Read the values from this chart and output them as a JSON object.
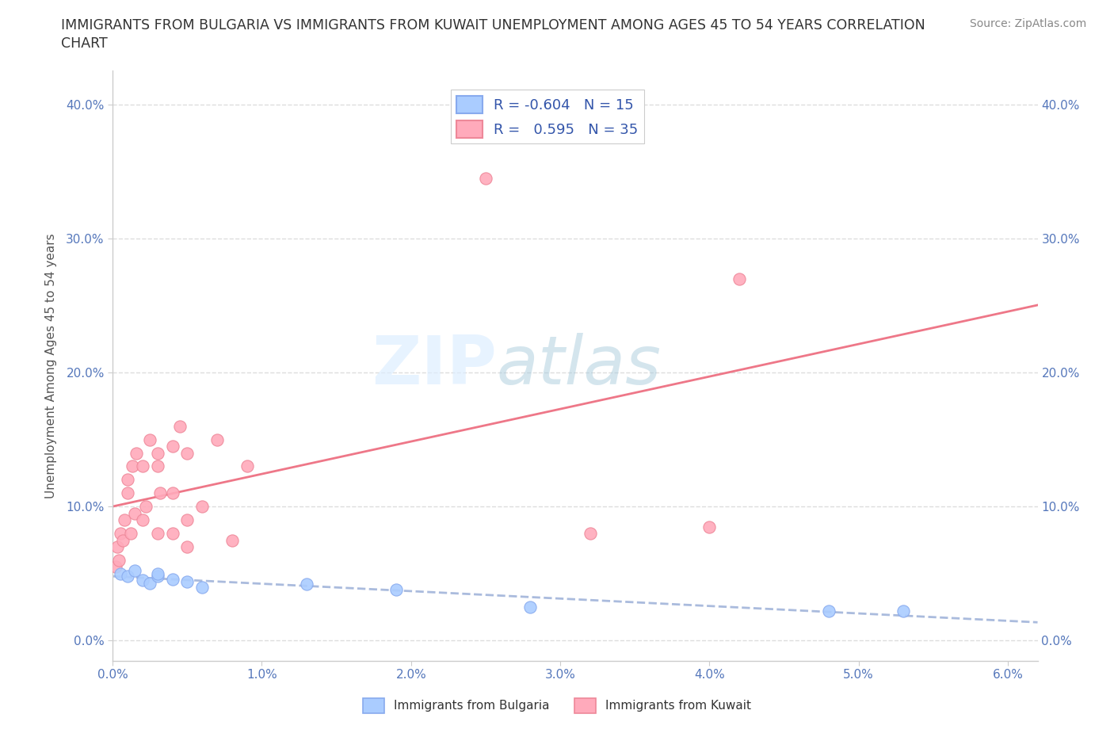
{
  "title_line1": "IMMIGRANTS FROM BULGARIA VS IMMIGRANTS FROM KUWAIT UNEMPLOYMENT AMONG AGES 45 TO 54 YEARS CORRELATION",
  "title_line2": "CHART",
  "source": "Source: ZipAtlas.com",
  "ylabel": "Unemployment Among Ages 45 to 54 years",
  "xlim": [
    0.0,
    0.062
  ],
  "ylim": [
    -0.015,
    0.425
  ],
  "xticks": [
    0.0,
    0.01,
    0.02,
    0.03,
    0.04,
    0.05,
    0.06
  ],
  "yticks": [
    0.0,
    0.1,
    0.2,
    0.3,
    0.4
  ],
  "ytick_labels": [
    "0.0%",
    "10.0%",
    "20.0%",
    "30.0%",
    "40.0%"
  ],
  "xtick_labels": [
    "0.0%",
    "1.0%",
    "2.0%",
    "3.0%",
    "4.0%",
    "5.0%",
    "6.0%"
  ],
  "bulgaria_color": "#aaccff",
  "bulgaria_edge": "#88aaee",
  "kuwait_color": "#ffaabb",
  "kuwait_edge": "#ee8899",
  "bulgaria_R": -0.604,
  "bulgaria_N": 15,
  "kuwait_R": 0.595,
  "kuwait_N": 35,
  "bulgaria_scatter_x": [
    0.0005,
    0.001,
    0.0015,
    0.002,
    0.0025,
    0.003,
    0.003,
    0.004,
    0.005,
    0.006,
    0.013,
    0.019,
    0.028,
    0.048,
    0.053
  ],
  "bulgaria_scatter_y": [
    0.05,
    0.048,
    0.052,
    0.045,
    0.043,
    0.048,
    0.05,
    0.046,
    0.044,
    0.04,
    0.042,
    0.038,
    0.025,
    0.022,
    0.022
  ],
  "kuwait_scatter_x": [
    0.0002,
    0.0003,
    0.0004,
    0.0005,
    0.0007,
    0.0008,
    0.001,
    0.001,
    0.0012,
    0.0013,
    0.0015,
    0.0016,
    0.002,
    0.002,
    0.0022,
    0.0025,
    0.003,
    0.003,
    0.003,
    0.0032,
    0.004,
    0.004,
    0.004,
    0.0045,
    0.005,
    0.005,
    0.005,
    0.006,
    0.007,
    0.008,
    0.009,
    0.025,
    0.032,
    0.04,
    0.042
  ],
  "kuwait_scatter_y": [
    0.055,
    0.07,
    0.06,
    0.08,
    0.075,
    0.09,
    0.11,
    0.12,
    0.08,
    0.13,
    0.095,
    0.14,
    0.09,
    0.13,
    0.1,
    0.15,
    0.13,
    0.08,
    0.14,
    0.11,
    0.11,
    0.08,
    0.145,
    0.16,
    0.07,
    0.09,
    0.14,
    0.1,
    0.15,
    0.075,
    0.13,
    0.345,
    0.08,
    0.085,
    0.27
  ],
  "watermark_zip": "ZIP",
  "watermark_atlas": "atlas",
  "legend_label_bulgaria": "Immigrants from Bulgaria",
  "legend_label_kuwait": "Immigrants from Kuwait",
  "background_color": "#ffffff",
  "grid_color": "#dddddd",
  "tick_color": "#5577bb",
  "title_color": "#333333",
  "legend_text_color": "#3355aa"
}
